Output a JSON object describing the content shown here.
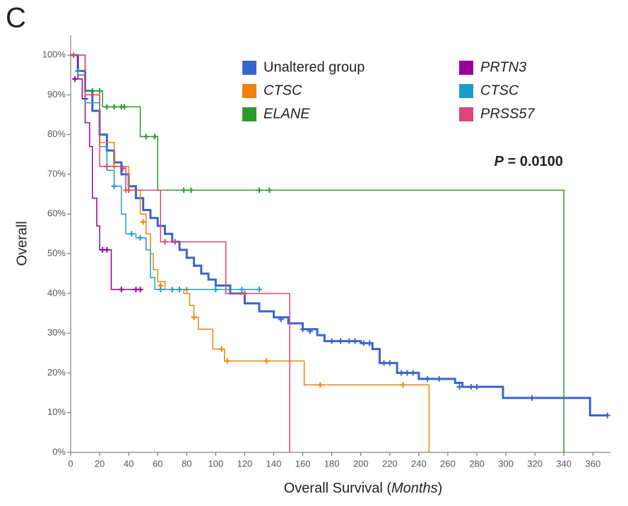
{
  "panel_label": "C",
  "chart_data": {
    "type": "survival",
    "ylabel": "Overall",
    "xlabel": [
      "Overall Survival (",
      "Months",
      ")"
    ],
    "annotation": {
      "symbol": "P",
      "text": "= 0.0100"
    },
    "xlim": [
      0,
      372
    ],
    "ylim": [
      0,
      105
    ],
    "xticks": [
      0,
      20,
      40,
      60,
      80,
      100,
      120,
      140,
      160,
      180,
      200,
      220,
      240,
      260,
      280,
      300,
      320,
      340,
      360
    ],
    "yticks": [
      {
        "value": 0,
        "label": "0%"
      },
      {
        "value": 10,
        "label": "10%"
      },
      {
        "value": 20,
        "label": "20%"
      },
      {
        "value": 30,
        "label": "30%"
      },
      {
        "value": 40,
        "label": "40%"
      },
      {
        "value": 50,
        "label": "50%"
      },
      {
        "value": 60,
        "label": "60%"
      },
      {
        "value": 70,
        "label": "70%"
      },
      {
        "value": 80,
        "label": "80%"
      },
      {
        "value": 90,
        "label": "90%"
      },
      {
        "value": 100,
        "label": "100%"
      }
    ],
    "series": [
      {
        "name": "Unaltered group",
        "italic": false,
        "color": "#3a64cc",
        "x": [
          0,
          5,
          10,
          15,
          20,
          25,
          30,
          35,
          40,
          45,
          50,
          55,
          60,
          65,
          70,
          75,
          80,
          85,
          90,
          95,
          100,
          110,
          120,
          130,
          140,
          150,
          160,
          170,
          175,
          190,
          200,
          208,
          213,
          222,
          225,
          238,
          240,
          262,
          265,
          270,
          290,
          298,
          357,
          358,
          370
        ],
        "values": [
          100,
          96,
          91,
          86,
          80,
          76,
          73,
          70,
          67,
          64,
          61,
          59,
          57,
          55,
          53,
          51,
          49,
          47,
          45,
          43.5,
          42,
          40,
          37.5,
          35.5,
          34,
          32.5,
          31,
          29.5,
          28,
          28,
          27.5,
          26,
          22.5,
          22.5,
          20,
          20,
          18.5,
          18.5,
          17.5,
          16.5,
          16.5,
          13.7,
          13.7,
          9.3,
          9.3
        ],
        "censor_x": [
          145,
          160,
          165,
          180,
          186,
          192,
          196,
          202,
          206,
          216,
          220,
          228,
          232,
          236,
          246,
          254,
          268,
          276,
          280,
          318,
          370
        ],
        "censor_values": [
          33.5,
          31,
          30.5,
          28,
          28,
          28,
          28,
          27.5,
          27.5,
          22.5,
          22.5,
          20,
          20,
          20,
          18.5,
          18.5,
          16.5,
          16.5,
          16.5,
          13.7,
          9.3
        ]
      },
      {
        "name": "CTSC",
        "italic": true,
        "color": "#f0820a",
        "x": [
          0,
          10,
          20,
          30,
          40,
          48,
          52,
          55,
          57,
          60,
          65,
          72,
          78,
          82,
          85,
          88,
          95,
          98,
          103,
          106,
          135,
          161,
          247,
          247
        ],
        "values": [
          100,
          90,
          78,
          72,
          66,
          60,
          55,
          50,
          46,
          43,
          41,
          41,
          40,
          37,
          34,
          31,
          31,
          26,
          26,
          23,
          23,
          17,
          17,
          0
        ],
        "censor_x": [
          30,
          38,
          50,
          62,
          75,
          80,
          85,
          104,
          108,
          135,
          172,
          229
        ],
        "censor_values": [
          72,
          66,
          58,
          42,
          41,
          41,
          34,
          26,
          23,
          23,
          17,
          17
        ]
      },
      {
        "name": "ELANE",
        "italic": true,
        "color": "#2a9a2a",
        "x": [
          0,
          5,
          10,
          20,
          22,
          47,
          48,
          59,
          60,
          339,
          340
        ],
        "values": [
          100,
          95,
          91,
          91,
          87,
          87,
          79.5,
          79.5,
          66,
          66,
          0
        ],
        "censor_x": [
          15,
          20,
          25,
          30,
          35,
          37,
          52,
          58,
          78,
          83,
          130,
          137
        ],
        "censor_values": [
          91,
          91,
          87,
          87,
          87,
          87,
          79.5,
          79.5,
          66,
          66,
          66,
          66
        ]
      },
      {
        "name": "PRTN3",
        "italic": true,
        "color": "#990099",
        "x": [
          0,
          5,
          8,
          10,
          13,
          15,
          18,
          20,
          27,
          28,
          48
        ],
        "values": [
          100,
          94,
          89,
          83,
          77,
          64,
          57,
          51,
          51,
          41,
          41
        ],
        "censor_x": [
          3,
          10,
          22,
          25,
          35,
          45,
          48
        ],
        "censor_values": [
          94,
          89,
          51,
          51,
          41,
          41,
          41
        ]
      },
      {
        "name": "CTSC",
        "italic": true,
        "color": "#1a9ec8",
        "x": [
          0,
          10,
          20,
          25,
          30,
          35,
          38,
          45,
          50,
          52,
          55,
          58,
          130
        ],
        "values": [
          100,
          88,
          77,
          71,
          67,
          60,
          55,
          54,
          54,
          51,
          44,
          41,
          41
        ],
        "censor_x": [
          5,
          30,
          42,
          48,
          62,
          70,
          75,
          100,
          118,
          130
        ],
        "censor_values": [
          96,
          67,
          55,
          54,
          41,
          41,
          41,
          41,
          41,
          41
        ]
      },
      {
        "name": "PRSS57",
        "italic": true,
        "color": "#dd4477",
        "x": [
          0,
          10,
          20,
          35,
          38,
          60,
          62,
          106,
          107,
          150,
          151
        ],
        "values": [
          100,
          90,
          72,
          72,
          66,
          66,
          53,
          53,
          40,
          40,
          0
        ],
        "censor_x": [
          2,
          25,
          36,
          40,
          65,
          72,
          120
        ],
        "censor_values": [
          100,
          72,
          71.5,
          66,
          53,
          53,
          40
        ]
      }
    ]
  }
}
